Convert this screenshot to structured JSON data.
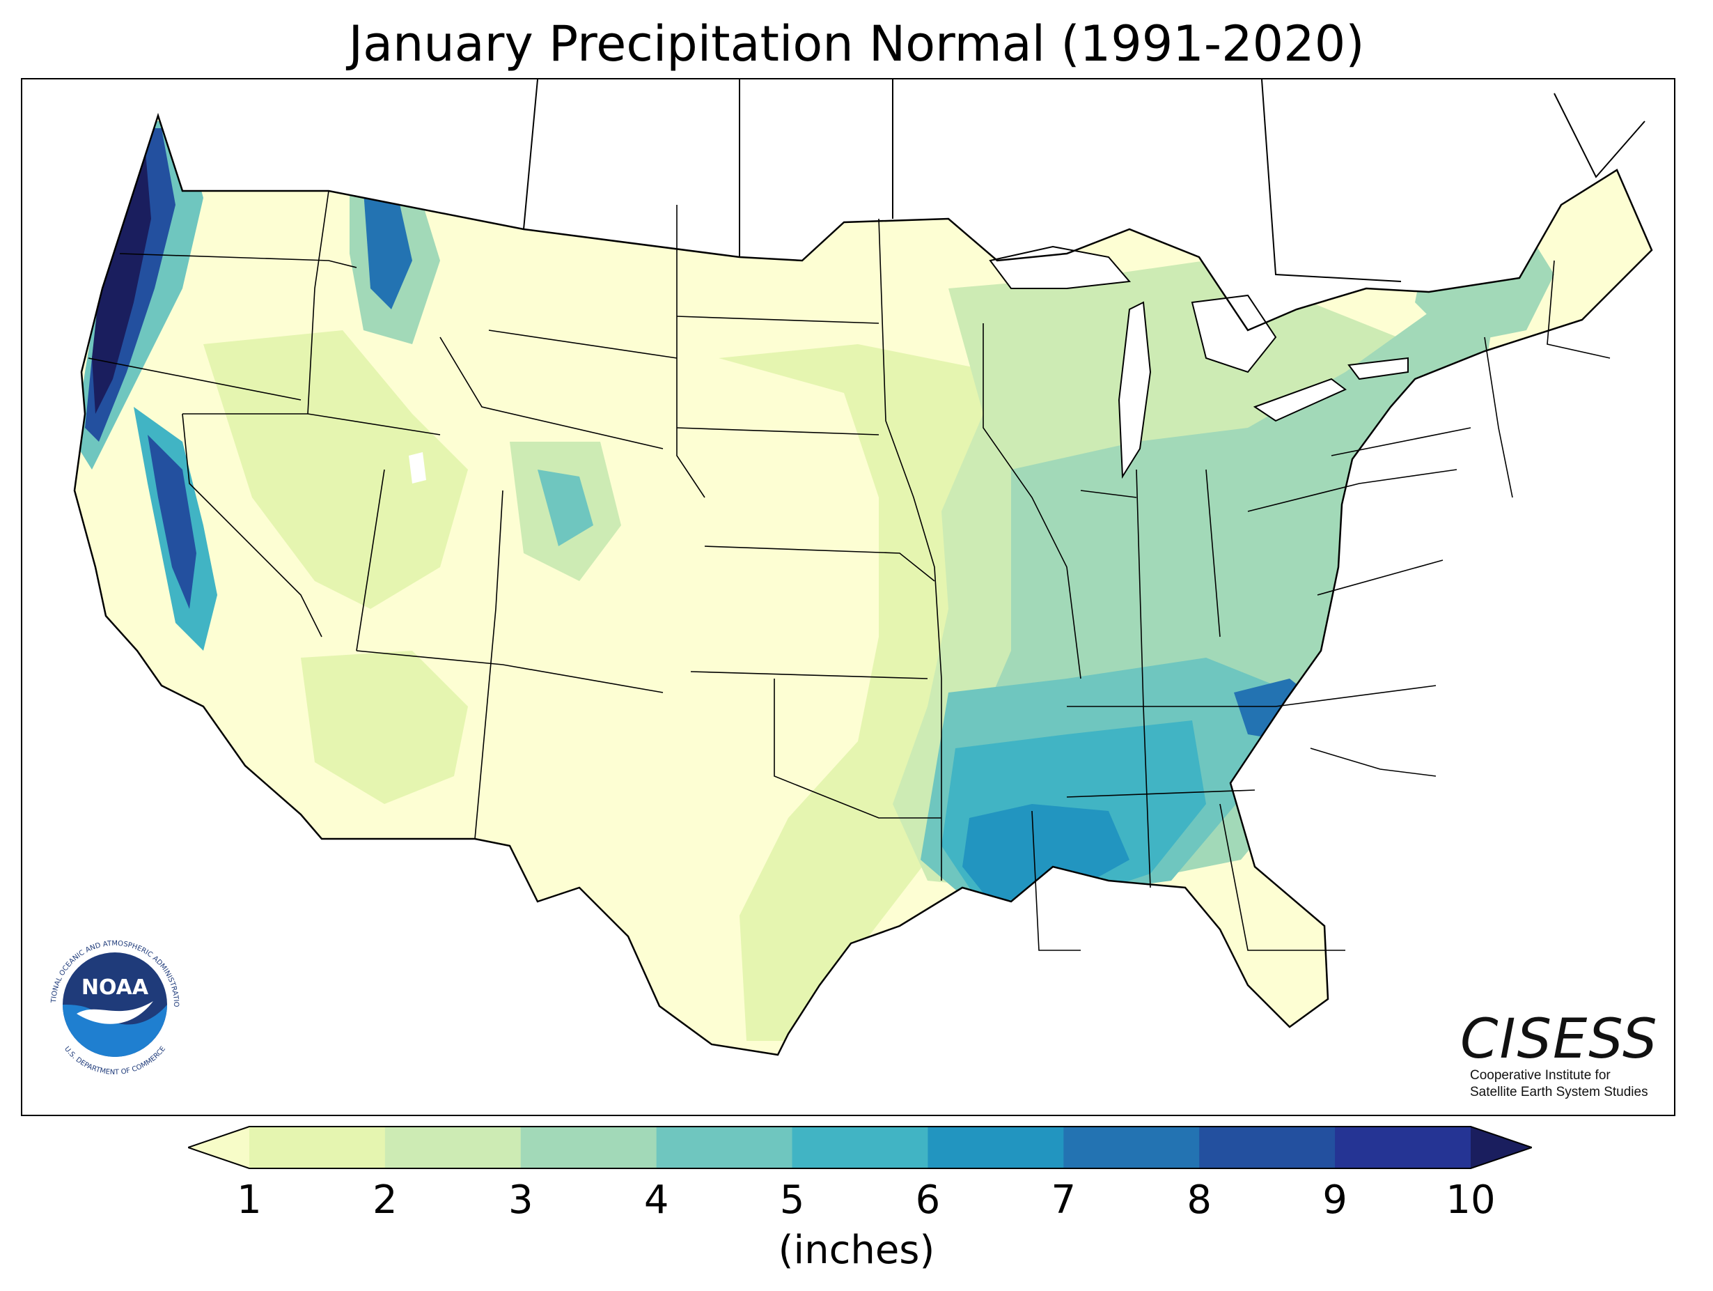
{
  "title": "January Precipitation Normal (1991-2020)",
  "colorbar": {
    "unit_label": "(inches)",
    "ticks": [
      "1",
      "2",
      "3",
      "4",
      "5",
      "6",
      "7",
      "8",
      "9",
      "10"
    ],
    "bins": [
      {
        "color": "#f7fcc8"
      },
      {
        "color": "#e5f5b0"
      },
      {
        "color": "#cdebb4"
      },
      {
        "color": "#a2d9b8"
      },
      {
        "color": "#6fc6bf"
      },
      {
        "color": "#41b4c4"
      },
      {
        "color": "#2295c0"
      },
      {
        "color": "#2373b2"
      },
      {
        "color": "#23509f"
      },
      {
        "color": "#253494"
      },
      {
        "color": "#1a1e5e"
      }
    ],
    "low_extend_color": "#f7fcc8",
    "high_extend_color": "#1a1e5e"
  },
  "logos": {
    "noaa": {
      "center_text": "NOAA",
      "ring_top": "NATIONAL OCEANIC AND ATMOSPHERIC ADMINISTRATION",
      "ring_bottom": "U.S. DEPARTMENT OF COMMERCE"
    },
    "cisess": {
      "name": "CISESS",
      "line1": "Cooperative Institute for",
      "line2": "Satellite Earth System Studies"
    }
  },
  "colors": {
    "land_base": "#fdfed3",
    "water": "#ffffff",
    "border": "#000000",
    "noaa_blue": "#1f3b7a",
    "noaa_light": "#1f7fd0"
  }
}
